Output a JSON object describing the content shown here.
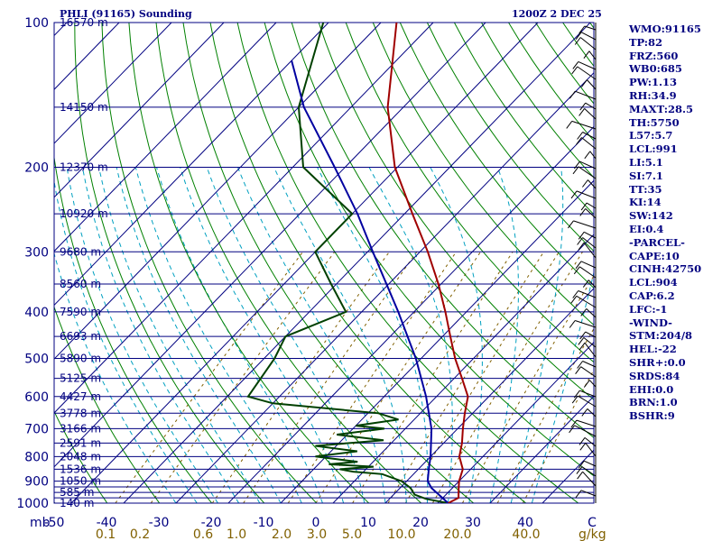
{
  "header": {
    "title": "PHLI (91165) Sounding",
    "time": "1200Z  2 DEC 25"
  },
  "indices": [
    "WMO:91165",
    "TP:82",
    "FRZ:560",
    "WB0:685",
    "PW:1.13",
    "RH:34.9",
    "MAXT:28.5",
    "TH:5750",
    "L57:5.7",
    "LCL:991",
    "LI:5.1",
    "SI:7.1",
    "TT:35",
    "KI:14",
    "SW:142",
    "EI:0.4",
    "-PARCEL-",
    "CAPE:10",
    "CINH:42750",
    "LCL:904",
    "CAP:6.2",
    "LFC:-1",
    "-WIND-",
    "STM:204/8",
    "HEL:-22",
    "SHR+:0.0",
    "SRDS:84",
    "EHI:0.0",
    "BRN:1.0",
    "BSHR:9"
  ],
  "colors": {
    "axes": "#000080",
    "isotherm": "#000080",
    "dry_adiabat": "#008000",
    "moist_adiabat": "#00A0C0",
    "mixing_ratio": "#806000",
    "temperature": "#A00000",
    "dewpoint": "#004000",
    "parcel": "#0000A0"
  },
  "chart_data": {
    "type": "skew-t",
    "x_unit": "C",
    "y_unit": "mb",
    "pressure_labels": [
      100,
      200,
      300,
      400,
      500,
      600,
      700,
      800,
      900,
      1000
    ],
    "pressure_lines": [
      100,
      150,
      200,
      250,
      300,
      350,
      400,
      450,
      500,
      550,
      600,
      650,
      700,
      750,
      800,
      850,
      900,
      925,
      950,
      975,
      1000
    ],
    "height_labels": [
      {
        "p": 100,
        "z": "16570 m"
      },
      {
        "p": 150,
        "z": "14150 m"
      },
      {
        "p": 200,
        "z": "12370 m"
      },
      {
        "p": 250,
        "z": "10920 m"
      },
      {
        "p": 300,
        "z": "9680 m"
      },
      {
        "p": 350,
        "z": "8560 m"
      },
      {
        "p": 400,
        "z": "7590 m"
      },
      {
        "p": 450,
        "z": "6693 m"
      },
      {
        "p": 500,
        "z": "5890 m"
      },
      {
        "p": 550,
        "z": "5125 m"
      },
      {
        "p": 600,
        "z": "4427 m"
      },
      {
        "p": 650,
        "z": "3778 m"
      },
      {
        "p": 700,
        "z": "3166 m"
      },
      {
        "p": 750,
        "z": "2591 m"
      },
      {
        "p": 800,
        "z": "2048 m"
      },
      {
        "p": 850,
        "z": "1536 m"
      },
      {
        "p": 900,
        "z": "1050 m"
      },
      {
        "p": 950,
        "z": "585 m"
      },
      {
        "p": 1000,
        "z": "140 m"
      }
    ],
    "temp_axis_labels": [
      -50,
      -40,
      -30,
      -20,
      -10,
      0,
      10,
      20,
      30,
      40
    ],
    "temp_axis_tail": "C",
    "mixing_ratio_labels": [
      "0.1",
      "0.2",
      "0.6",
      "1.0",
      "2.0",
      "3.0",
      "5.0",
      "10.0",
      "20.0",
      "40.0"
    ],
    "mixing_ratio_unit": "g/kg",
    "temperature": [
      {
        "p": 1000,
        "t": 22.0
      },
      {
        "p": 975,
        "t": 23.0
      },
      {
        "p": 950,
        "t": 22.0
      },
      {
        "p": 925,
        "t": 21.0
      },
      {
        "p": 900,
        "t": 20.0
      },
      {
        "p": 850,
        "t": 18.5
      },
      {
        "p": 800,
        "t": 15.5
      },
      {
        "p": 750,
        "t": 13.5
      },
      {
        "p": 700,
        "t": 11.0
      },
      {
        "p": 650,
        "t": 8.5
      },
      {
        "p": 600,
        "t": 6.0
      },
      {
        "p": 550,
        "t": 1.5
      },
      {
        "p": 500,
        "t": -3.5
      },
      {
        "p": 450,
        "t": -8.5
      },
      {
        "p": 400,
        "t": -14.0
      },
      {
        "p": 350,
        "t": -20.5
      },
      {
        "p": 300,
        "t": -28.5
      },
      {
        "p": 250,
        "t": -38.5
      },
      {
        "p": 200,
        "t": -50.5
      },
      {
        "p": 150,
        "t": -63.0
      },
      {
        "p": 100,
        "t": -77.0
      }
    ],
    "dewpoint": [
      {
        "p": 1000,
        "t": 22.0
      },
      {
        "p": 980,
        "t": 17.0
      },
      {
        "p": 960,
        "t": 14.0
      },
      {
        "p": 930,
        "t": 12.0
      },
      {
        "p": 900,
        "t": 9.0
      },
      {
        "p": 870,
        "t": 4.0
      },
      {
        "p": 860,
        "t": -2.0
      },
      {
        "p": 850,
        "t": -5.0
      },
      {
        "p": 840,
        "t": 1.0
      },
      {
        "p": 830,
        "t": -8.0
      },
      {
        "p": 820,
        "t": -3.0
      },
      {
        "p": 800,
        "t": -12.0
      },
      {
        "p": 780,
        "t": -5.0
      },
      {
        "p": 760,
        "t": -14.0
      },
      {
        "p": 740,
        "t": -2.0
      },
      {
        "p": 720,
        "t": -12.0
      },
      {
        "p": 700,
        "t": -4.0
      },
      {
        "p": 690,
        "t": -10.0
      },
      {
        "p": 670,
        "t": -3.0
      },
      {
        "p": 650,
        "t": -8.0
      },
      {
        "p": 620,
        "t": -30.0
      },
      {
        "p": 600,
        "t": -36.0
      },
      {
        "p": 500,
        "t": -38.0
      },
      {
        "p": 450,
        "t": -40.0
      },
      {
        "p": 400,
        "t": -33.0
      },
      {
        "p": 350,
        "t": -41.0
      },
      {
        "p": 300,
        "t": -50.0
      },
      {
        "p": 250,
        "t": -50.0
      },
      {
        "p": 200,
        "t": -68.0
      },
      {
        "p": 150,
        "t": -80.0
      },
      {
        "p": 100,
        "t": -91.0
      }
    ],
    "parcel": [
      {
        "p": 1000,
        "t": 22.0
      },
      {
        "p": 930,
        "t": 16.0
      },
      {
        "p": 900,
        "t": 14.0
      },
      {
        "p": 850,
        "t": 12.0
      },
      {
        "p": 800,
        "t": 10.0
      },
      {
        "p": 700,
        "t": 5.0
      },
      {
        "p": 600,
        "t": -2.0
      },
      {
        "p": 500,
        "t": -11.0
      },
      {
        "p": 400,
        "t": -23.0
      },
      {
        "p": 300,
        "t": -39.0
      },
      {
        "p": 250,
        "t": -49.0
      },
      {
        "p": 200,
        "t": -62.0
      },
      {
        "p": 150,
        "t": -79.0
      },
      {
        "p": 120,
        "t": -90.0
      }
    ]
  }
}
